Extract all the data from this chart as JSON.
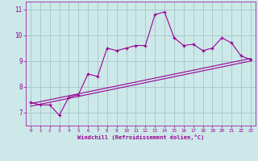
{
  "xlabel": "Windchill (Refroidissement éolien,°C)",
  "bg_color": "#cce8e8",
  "line_color": "#990099",
  "grid_color": "#aacccc",
  "x_ticks": [
    0,
    1,
    2,
    3,
    4,
    5,
    6,
    7,
    8,
    9,
    10,
    11,
    12,
    13,
    14,
    15,
    16,
    17,
    18,
    19,
    20,
    21,
    22,
    23
  ],
  "y_ticks": [
    7,
    8,
    9,
    10,
    11
  ],
  "xlim": [
    -0.5,
    23.5
  ],
  "ylim": [
    6.5,
    11.3
  ],
  "main_x": [
    0,
    1,
    2,
    3,
    4,
    5,
    6,
    7,
    8,
    9,
    10,
    11,
    12,
    13,
    14,
    15,
    16,
    17,
    18,
    19,
    20,
    21,
    22,
    23
  ],
  "main_y": [
    7.4,
    7.3,
    7.3,
    6.9,
    7.6,
    7.7,
    8.5,
    8.4,
    9.5,
    9.4,
    9.5,
    9.6,
    9.6,
    10.8,
    10.9,
    9.9,
    9.6,
    9.65,
    9.4,
    9.5,
    9.9,
    9.7,
    9.2,
    9.05
  ],
  "line2_x": [
    0,
    23
  ],
  "line2_y": [
    7.35,
    9.1
  ],
  "line3_x": [
    0,
    23
  ],
  "line3_y": [
    7.25,
    9.0
  ]
}
